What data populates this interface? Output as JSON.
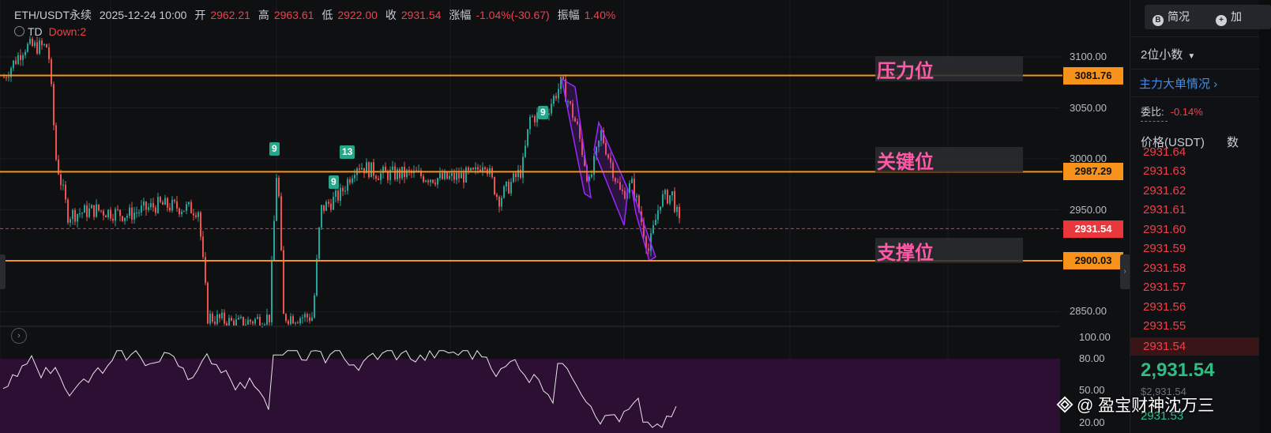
{
  "header": {
    "symbol": "ETH/USDT永续",
    "datetime": "2025-12-24 10:00",
    "open_label": "开",
    "open_value": "2962.21",
    "high_label": "高",
    "high_value": "2963.61",
    "low_label": "低",
    "low_value": "2922.00",
    "close_label": "收",
    "close_value": "2931.54",
    "change_label": "涨幅",
    "change_value": "-1.04%(-30.67)",
    "amplitude_label": "振幅",
    "amplitude_value": "1.40%"
  },
  "indicator": {
    "name": "TD",
    "status": "Down:2"
  },
  "price_axis": [
    "3100.00",
    "3050.00",
    "3000.00",
    "2950.00",
    "2850.00"
  ],
  "levels": {
    "resistance": {
      "label": "压力位",
      "price": "3081.76"
    },
    "key": {
      "label": "关键位",
      "price": "2987.29"
    },
    "current": {
      "price": "2931.54"
    },
    "support": {
      "label": "支撑位",
      "price": "2900.03"
    }
  },
  "td_badges": [
    "9",
    "13",
    "9",
    "9"
  ],
  "rsi_axis": [
    "100.00",
    "80.00",
    "50.00",
    "20.00"
  ],
  "colors": {
    "up": "#26a69a",
    "down": "#ef5350",
    "level": "#f7931a",
    "channel": "#9c27ff",
    "rsi_band": "#2d0f33",
    "current": "#e8383d"
  },
  "right_panel": {
    "tab_brief": "简况",
    "tab_brief_icon": "B",
    "tab_add": "加",
    "decimals": "2位小数",
    "main_orders_link": "主力大单情况",
    "ratio_label": "委比:",
    "ratio_value": "-0.14%",
    "col_price": "价格(USDT)",
    "col_qty": "数",
    "asks": [
      "2931.63",
      "2931.62",
      "2931.61",
      "2931.60",
      "2931.59",
      "2931.58",
      "2931.57",
      "2931.56",
      "2931.55",
      "2931.54"
    ],
    "ask_cut": "2931.64",
    "last_price": "2,931.54",
    "last_usd": "$2,931.54",
    "bid_cut": "2931.53"
  },
  "watermark": "@ 盈宝财神沈万三"
}
